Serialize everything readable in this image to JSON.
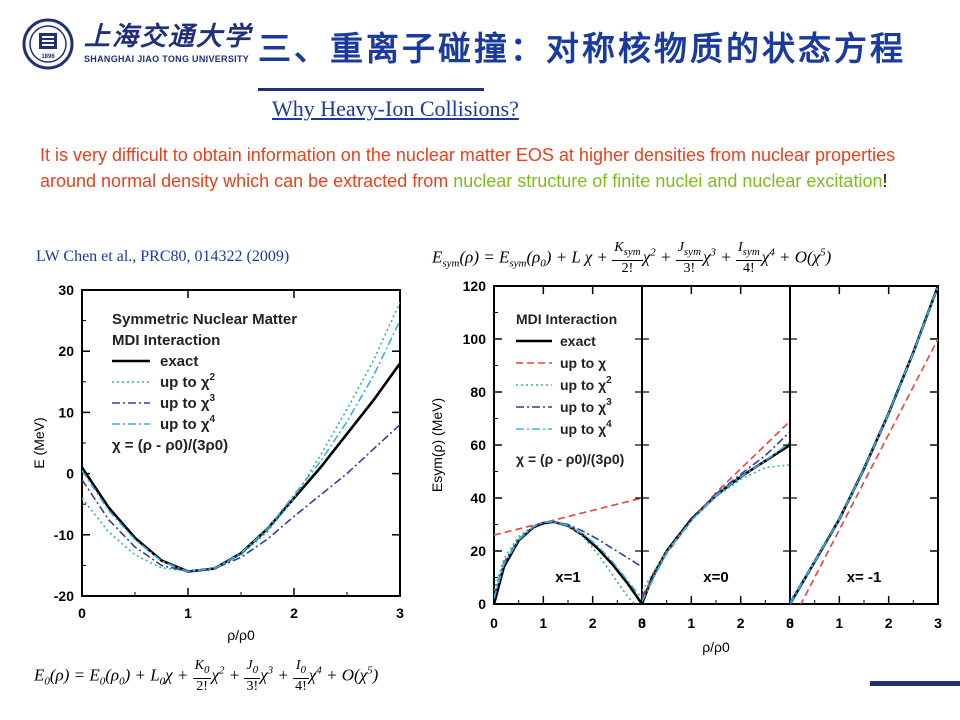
{
  "header": {
    "school_name_cn": "上海交通大学",
    "school_name_en": "SHANGHAI JIAO TONG UNIVERSITY",
    "logo_year": "1896",
    "slide_title": "三、重离子碰撞：对称核物质的状态方程"
  },
  "subtitle": "Why Heavy-Ion Collisions?",
  "paragraph": {
    "part1": "It is very difficult to obtain information on the nuclear matter EOS at higher densities from nuclear properties around normal density which can be extracted from ",
    "green": "nuclear structure of finite nuclei and nuclear excitation",
    "part2": "!"
  },
  "citation": "LW Chen et al., PRC80, 014322 (2009)",
  "equations": {
    "esym": {
      "lhs": "E",
      "lhs_sub": "sym",
      "arg": "(ρ) = E",
      "rhs_sub": "sym",
      "rest": "(ρ",
      "c_sub": "0",
      "after": ") + L χ +",
      "k_num": "K",
      "k_sub": "sym",
      "k_den": "2!",
      "j_num": "J",
      "j_sub": "sym",
      "j_den": "3!",
      "i_num": "I",
      "i_sub": "sym",
      "i_den": "4!",
      "tail": "+ O(χ"
    },
    "e0": {
      "lhs": "E",
      "lhs_sub": "0",
      "arg": "(ρ) = E",
      "rhs_sub": "0",
      "rest": "(ρ",
      "c_sub": "0",
      "after": ") + L",
      "l_sub": "0",
      "k_num": "K",
      "k_sub": "0",
      "k_den": "2!",
      "j_num": "J",
      "j_sub": "0",
      "j_den": "3!",
      "i_num": "I",
      "i_sub": "0",
      "i_den": "4!",
      "tail": "+ O(χ"
    }
  },
  "colors": {
    "title_blue": "#1a3aa0",
    "navy": "#1f2f7a",
    "red_text": "#e8401c",
    "green_text": "#7cbd1c",
    "exact": "#000000",
    "up_to_chi": "#e8453c",
    "up_to_chi2": "#2ab8a0",
    "up_to_chi3": "#3a3aa0",
    "up_to_chi4": "#3ab0e0"
  },
  "chart_data": [
    {
      "type": "line",
      "title": "",
      "legend_title": [
        "Symmetric Nuclear Matter",
        "MDI Interaction"
      ],
      "legend_placement": "top-left",
      "xlabel": "ρ/ρ0",
      "ylabel": "E (MeV)",
      "xlim": [
        0,
        3
      ],
      "ylim": [
        -20,
        30
      ],
      "xticks": [
        "0",
        "1",
        "2",
        "3"
      ],
      "yticks": [
        "-20",
        "-10",
        "0",
        "10",
        "20",
        "30"
      ],
      "chi_label": "χ = (ρ - ρ0)/(3ρ0)",
      "series": [
        {
          "name": "exact",
          "x": [
            0,
            0.25,
            0.5,
            0.75,
            1.0,
            1.25,
            1.5,
            1.75,
            2.0,
            2.25,
            2.5,
            2.75,
            3.0
          ],
          "y": [
            1,
            -5.5,
            -10.5,
            -14.2,
            -16.0,
            -15.5,
            -13.0,
            -9.0,
            -4.0,
            1.0,
            6.5,
            12.0,
            18.0
          ]
        },
        {
          "name": "up to χ2",
          "x": [
            0,
            0.25,
            0.5,
            0.75,
            1.0,
            1.25,
            1.5,
            1.75,
            2.0,
            2.25,
            2.5,
            2.75,
            3.0
          ],
          "y": [
            -4.0,
            -9.5,
            -13.3,
            -15.4,
            -16.0,
            -15.4,
            -13.3,
            -9.5,
            -4.0,
            3.0,
            10.5,
            18.5,
            28.0
          ]
        },
        {
          "name": "up to χ3",
          "x": [
            0,
            0.25,
            0.5,
            0.75,
            1.0,
            1.25,
            1.5,
            1.75,
            2.0,
            2.25,
            2.5,
            2.75,
            3.0
          ],
          "y": [
            -1.0,
            -7.5,
            -12.0,
            -15.0,
            -16.0,
            -15.5,
            -13.7,
            -10.7,
            -7.0,
            -3.5,
            0.0,
            4.0,
            8.0
          ]
        },
        {
          "name": "up to χ4",
          "x": [
            0,
            0.25,
            0.5,
            0.75,
            1.0,
            1.25,
            1.5,
            1.75,
            2.0,
            2.25,
            2.5,
            2.75,
            3.0
          ],
          "y": [
            0.5,
            -6.0,
            -10.8,
            -14.3,
            -16.0,
            -15.5,
            -13.0,
            -9.0,
            -3.5,
            2.0,
            8.5,
            16.0,
            25.0
          ]
        }
      ]
    },
    {
      "type": "line",
      "title": "",
      "legend_title": [
        "MDI Interaction"
      ],
      "legend_placement": "top-left",
      "xlabel": "ρ/ρ0",
      "ylabel": "Esym(ρ) (MeV)",
      "xlim": [
        0,
        3
      ],
      "ylim": [
        0,
        120
      ],
      "xticks": [
        "0",
        "1",
        "2",
        "3"
      ],
      "yticks": [
        "0",
        "20",
        "40",
        "60",
        "80",
        "100",
        "120"
      ],
      "chi_label": "χ = (ρ - ρ0)/(3ρ0)",
      "panels": [
        {
          "label": "x=1",
          "series": [
            {
              "name": "exact",
              "x": [
                0,
                0.2,
                0.5,
                0.8,
                1.0,
                1.2,
                1.5,
                1.8,
                2.1,
                2.4,
                2.7,
                3.0
              ],
              "y": [
                0,
                14,
                24,
                29,
                30.5,
                31,
                29.5,
                26,
                21,
                15,
                8,
                0
              ]
            },
            {
              "name": "up to χ",
              "x": [
                0,
                3.0
              ],
              "y": [
                26,
                40
              ]
            },
            {
              "name": "up to χ2",
              "x": [
                0,
                0.2,
                0.5,
                0.8,
                1.0,
                1.2,
                1.5,
                1.8,
                2.1,
                2.4,
                2.7,
                3.0
              ],
              "y": [
                5,
                17,
                25.5,
                29.5,
                31,
                31,
                29.5,
                25.5,
                19,
                11,
                3,
                -3
              ]
            },
            {
              "name": "up to χ3",
              "x": [
                0,
                0.2,
                0.5,
                0.8,
                1.0,
                1.2,
                1.5,
                1.8,
                2.1,
                2.4,
                2.7,
                3.0
              ],
              "y": [
                3,
                15.5,
                24.5,
                29.3,
                30.8,
                31,
                30,
                27.5,
                24.5,
                21,
                17.5,
                14
              ]
            },
            {
              "name": "up to χ4",
              "x": [
                0,
                0.2,
                0.5,
                0.8,
                1.0,
                1.2,
                1.5,
                1.8,
                2.1,
                2.4,
                2.7,
                3.0
              ],
              "y": [
                2,
                15,
                24.2,
                29.2,
                30.8,
                31,
                29.6,
                26.5,
                22,
                16,
                9,
                2
              ]
            }
          ]
        },
        {
          "label": "x=0",
          "series": [
            {
              "name": "exact",
              "x": [
                0,
                0.2,
                0.5,
                1.0,
                1.5,
                2.0,
                2.5,
                3.0
              ],
              "y": [
                0,
                10,
                20,
                32,
                41,
                48,
                54,
                60
              ]
            },
            {
              "name": "up to χ",
              "x": [
                0,
                0.5,
                1.0,
                1.5,
                2.0,
                2.5,
                3.0
              ],
              "y": [
                3,
                19,
                31.5,
                42,
                51,
                60,
                69
              ]
            },
            {
              "name": "up to χ2",
              "x": [
                0,
                0.5,
                1.0,
                1.5,
                2.0,
                2.5,
                3.0
              ],
              "y": [
                5,
                20,
                31.5,
                40.5,
                47,
                51.5,
                52.5
              ]
            },
            {
              "name": "up to χ3",
              "x": [
                0,
                0.5,
                1.0,
                1.5,
                2.0,
                2.5,
                3.0
              ],
              "y": [
                2,
                19.5,
                31.5,
                41.5,
                49,
                56,
                65
              ]
            },
            {
              "name": "up to χ4",
              "x": [
                0,
                0.5,
                1.0,
                1.5,
                2.0,
                2.5,
                3.0
              ],
              "y": [
                1,
                19.5,
                31.5,
                41,
                48,
                54,
                61
              ]
            }
          ]
        },
        {
          "label": "x= -1",
          "series": [
            {
              "name": "exact",
              "x": [
                0,
                0.5,
                1.0,
                1.5,
                2.0,
                2.5,
                3.0
              ],
              "y": [
                0,
                16,
                32,
                51,
                72,
                95,
                120
              ]
            },
            {
              "name": "up to χ",
              "x": [
                0,
                3.0
              ],
              "y": [
                -8,
                100
              ]
            },
            {
              "name": "up to χ2",
              "x": [
                0,
                0.5,
                1.0,
                1.5,
                2.0,
                2.5,
                3.0
              ],
              "y": [
                1,
                16.5,
                32,
                51,
                72,
                95,
                119
              ]
            },
            {
              "name": "up to χ3",
              "x": [
                0,
                0.5,
                1.0,
                1.5,
                2.0,
                2.5,
                3.0
              ],
              "y": [
                0.5,
                16,
                32,
                51,
                72,
                95,
                120
              ]
            },
            {
              "name": "up to χ4",
              "x": [
                0,
                0.5,
                1.0,
                1.5,
                2.0,
                2.5,
                3.0
              ],
              "y": [
                0,
                16,
                32,
                51,
                72,
                95,
                120
              ]
            }
          ]
        }
      ]
    }
  ]
}
